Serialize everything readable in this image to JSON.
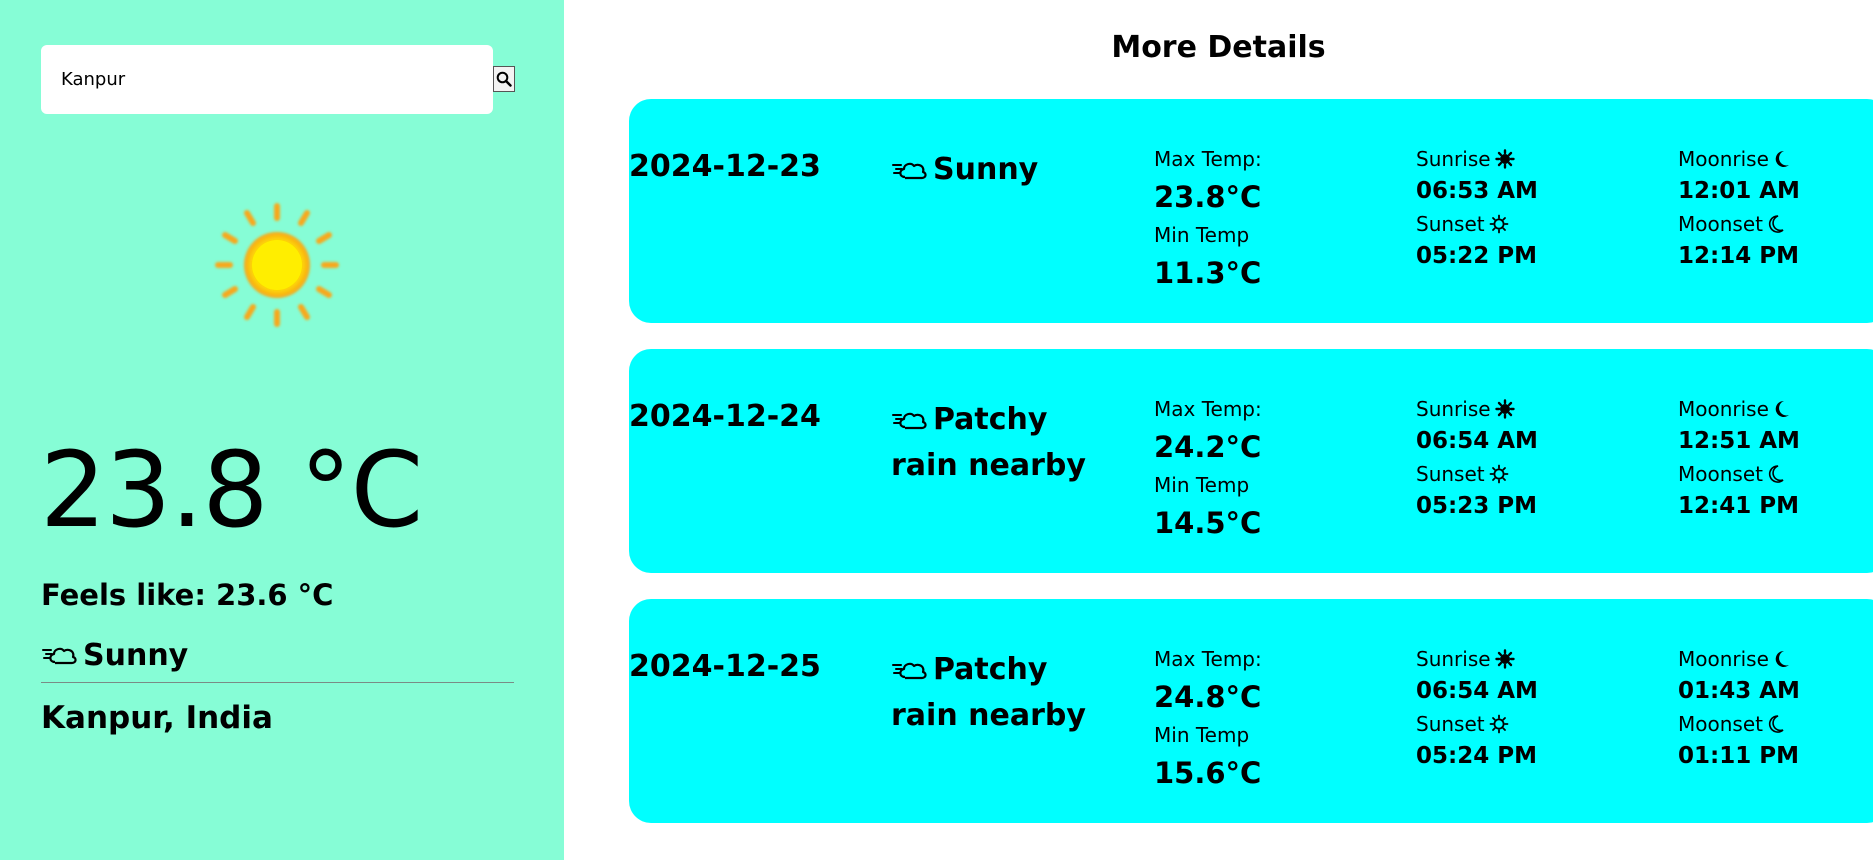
{
  "search": {
    "value": "Kanpur",
    "placeholder": ""
  },
  "current": {
    "temperature": "23.8 °C",
    "feels_like": "Feels like: 23.6 °C",
    "condition": "Sunny",
    "location": "Kanpur, India",
    "icon": "sun-icon"
  },
  "details": {
    "title": "More Details",
    "labels": {
      "max_temp": "Max Temp:",
      "min_temp": "Min Temp",
      "sunrise": "Sunrise",
      "sunset": "Sunset",
      "moonrise": "Moonrise",
      "moonset": "Moonset"
    },
    "days": [
      {
        "date": "2024-12-23",
        "condition": "Sunny",
        "max_temp": "23.8°C",
        "min_temp": "11.3°C",
        "sunrise": "06:53 AM",
        "sunset": "05:22 PM",
        "moonrise": "12:01 AM",
        "moonset": "12:14 PM"
      },
      {
        "date": "2024-12-24",
        "condition": "Patchy rain nearby",
        "max_temp": "24.2°C",
        "min_temp": "14.5°C",
        "sunrise": "06:54 AM",
        "sunset": "05:23 PM",
        "moonrise": "12:51 AM",
        "moonset": "12:41 PM"
      },
      {
        "date": "2024-12-25",
        "condition": "Patchy rain nearby",
        "max_temp": "24.8°C",
        "min_temp": "15.6°C",
        "sunrise": "06:54 AM",
        "sunset": "05:24 PM",
        "moonrise": "01:43 AM",
        "moonset": "01:11 PM"
      }
    ]
  },
  "colors": {
    "sidebar_bg": "#86fdd6",
    "card_bg": "#00ffff",
    "sun_core": "#ffe600",
    "sun_rays": "#f7a91e"
  }
}
